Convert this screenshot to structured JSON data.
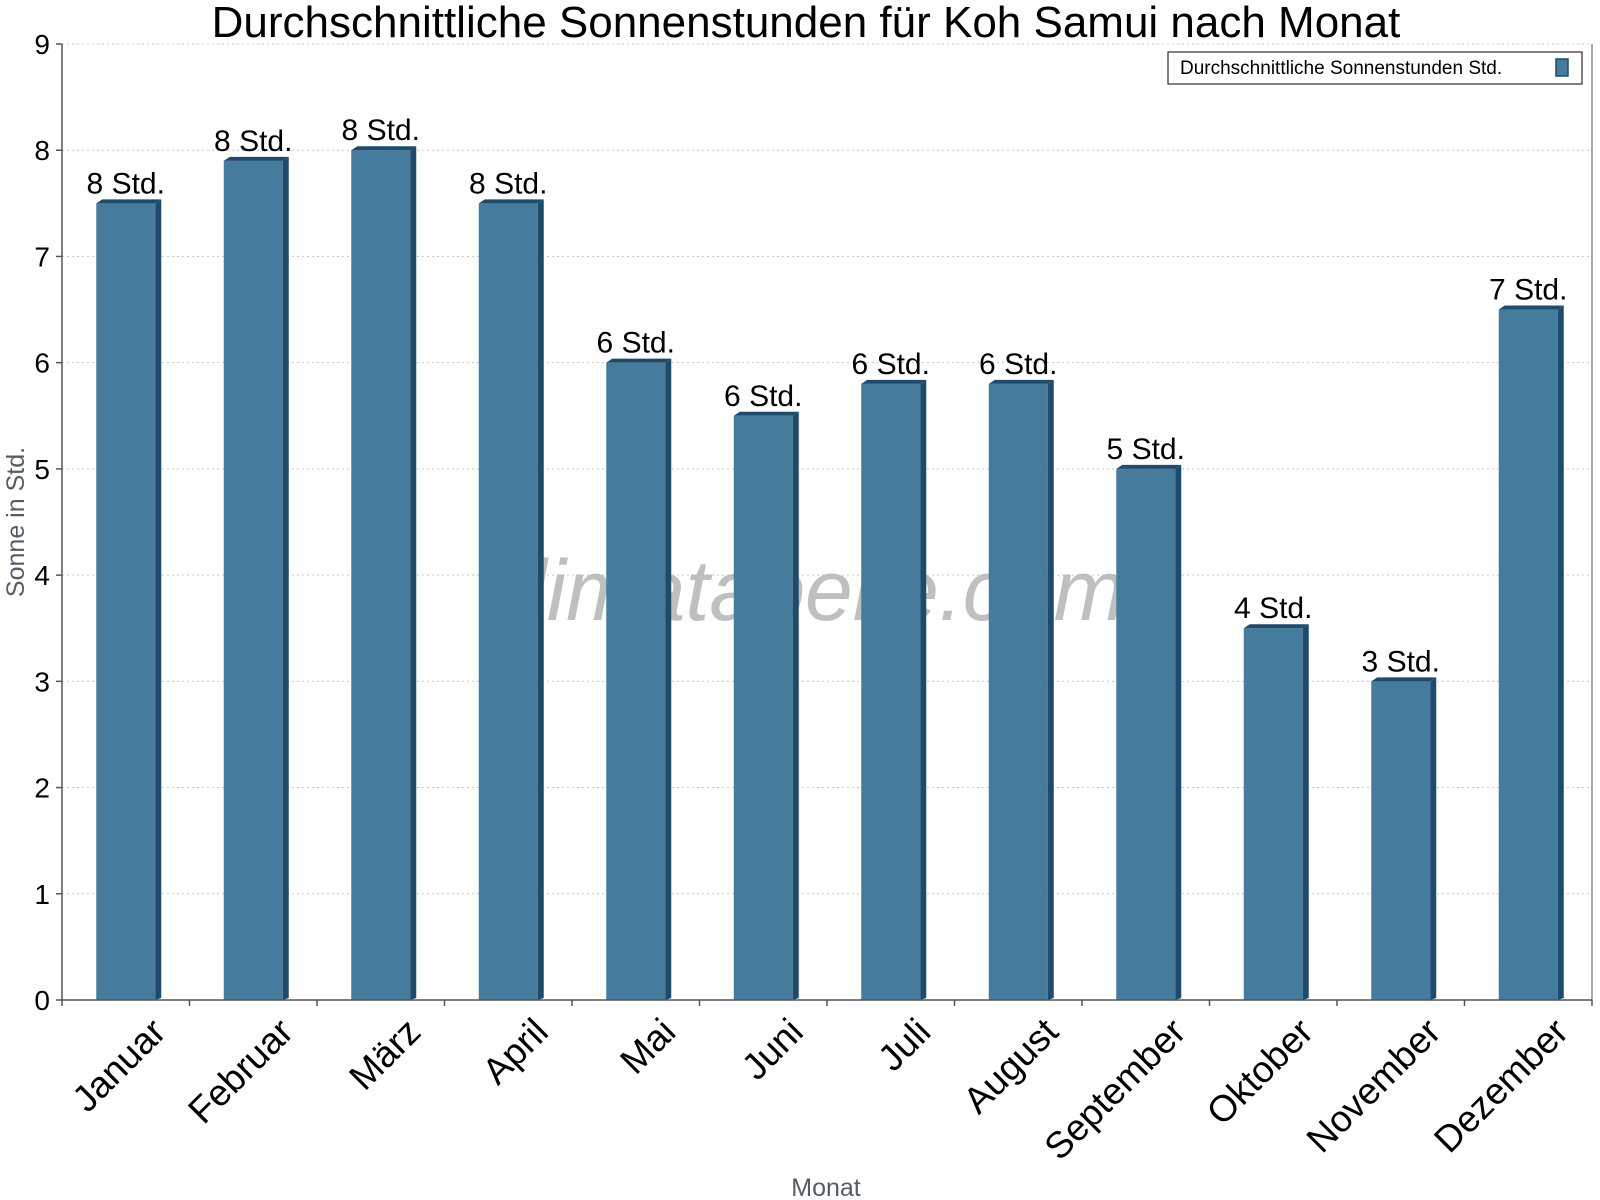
{
  "chart_data": {
    "type": "bar",
    "title": "Durchschnittliche Sonnenstunden für Koh Samui nach Monat",
    "xlabel": "Monat",
    "ylabel": "Sonne in Std.",
    "ylim": [
      0,
      9
    ],
    "yticks": [
      "0",
      "1",
      "2",
      "3",
      "4",
      "5",
      "6",
      "7",
      "8",
      "9"
    ],
    "grid": true,
    "legend_position": "top-right",
    "categories": [
      "Januar",
      "Februar",
      "März",
      "April",
      "Mai",
      "Juni",
      "Juli",
      "August",
      "September",
      "Oktober",
      "November",
      "Dezember"
    ],
    "series": [
      {
        "name": "Durchschnittliche Sonnenstunden Std.",
        "values": [
          7.5,
          7.9,
          8.0,
          7.5,
          6.0,
          5.5,
          5.8,
          5.8,
          5.0,
          3.5,
          3.0,
          6.5
        ],
        "data_labels": [
          "8 Std.",
          "8 Std.",
          "8 Std.",
          "8 Std.",
          "6 Std.",
          "6 Std.",
          "6 Std.",
          "6 Std.",
          "5 Std.",
          "4 Std.",
          "3 Std.",
          "7 Std."
        ]
      }
    ],
    "colors": {
      "bar_face": "#457b9d",
      "bar_side": "#1d4b6b",
      "bar_top": "#1d4b6b"
    },
    "watermark": "klimatabelle.com"
  }
}
